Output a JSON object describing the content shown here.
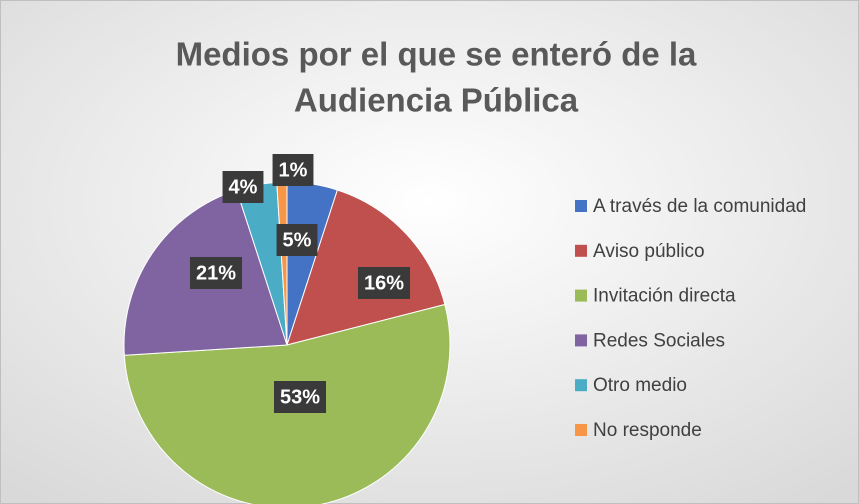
{
  "chart_data": {
    "type": "pie",
    "title": [
      "Medios por el que se enteró de la",
      "Audiencia Pública"
    ],
    "categories": [
      "A través de la comunidad",
      "Aviso público",
      "Invitación directa",
      "Redes Sociales",
      "Otro medio",
      "No responde"
    ],
    "values": [
      5,
      16,
      53,
      21,
      4,
      1
    ],
    "value_labels": [
      "5%",
      "16%",
      "53%",
      "21%",
      "4%",
      "1%"
    ],
    "colors": [
      "#4472c4",
      "#c0504d",
      "#9bbb59",
      "#8064a2",
      "#4bacc6",
      "#f79646"
    ],
    "legend": "right"
  }
}
